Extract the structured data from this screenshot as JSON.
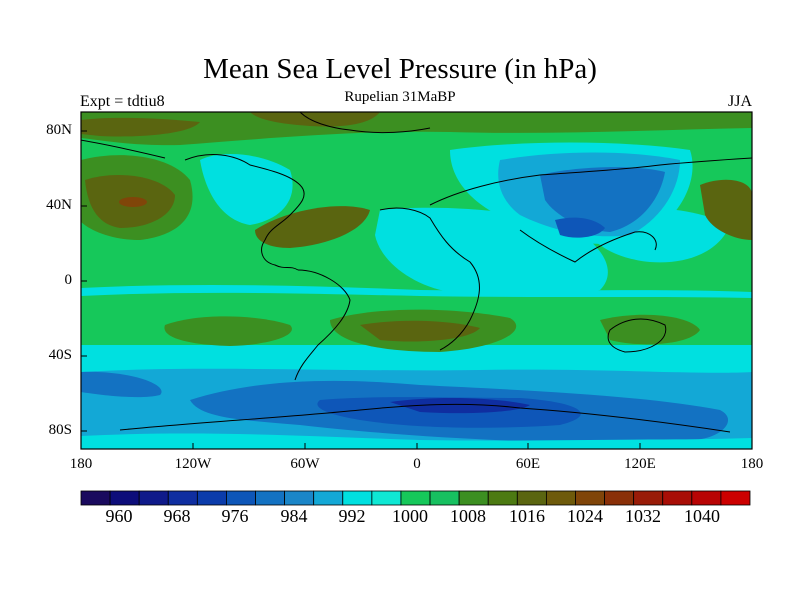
{
  "title": "Mean Sea Level Pressure (in hPa)",
  "subtitle": "Rupelian  31MaBP",
  "left_label": "Expt = tdtiu8",
  "right_label": "JJA",
  "lat_labels": [
    "80N",
    "40N",
    "0",
    "40S",
    "80S"
  ],
  "lon_labels": [
    "180",
    "120W",
    "60W",
    "0",
    "60E",
    "120E",
    "180"
  ],
  "colorbar": {
    "units": "hPa",
    "colors": [
      "#1a0a5e",
      "#0d0d7a",
      "#0f1a8a",
      "#0f2ea0",
      "#0b3cab",
      "#0e56b8",
      "#1372c2",
      "#1b86c8",
      "#13a8d6",
      "#00e0e0",
      "#0fe8d4",
      "#16c85a",
      "#17c060",
      "#3c8f21",
      "#4c7a12",
      "#5a6510",
      "#6e5a0b",
      "#804509",
      "#8a3008",
      "#991c08",
      "#a80e06",
      "#b80404",
      "#cc0000"
    ],
    "labels": [
      "960",
      "968",
      "976",
      "984",
      "992",
      "1000",
      "1008",
      "1016",
      "1024",
      "1032",
      "1040"
    ]
  },
  "map_colors": {
    "ocean_green": "#16c85a",
    "dark_green": "#3c8f21",
    "brown": "#5a6510",
    "dark_brown": "#6e5a0b",
    "red_brown": "#804509",
    "cyan": "#00e0e0",
    "light_blue": "#13a8d6",
    "mid_blue": "#1372c2",
    "deep_blue": "#0e56b8",
    "navy": "#0f2ea0"
  }
}
